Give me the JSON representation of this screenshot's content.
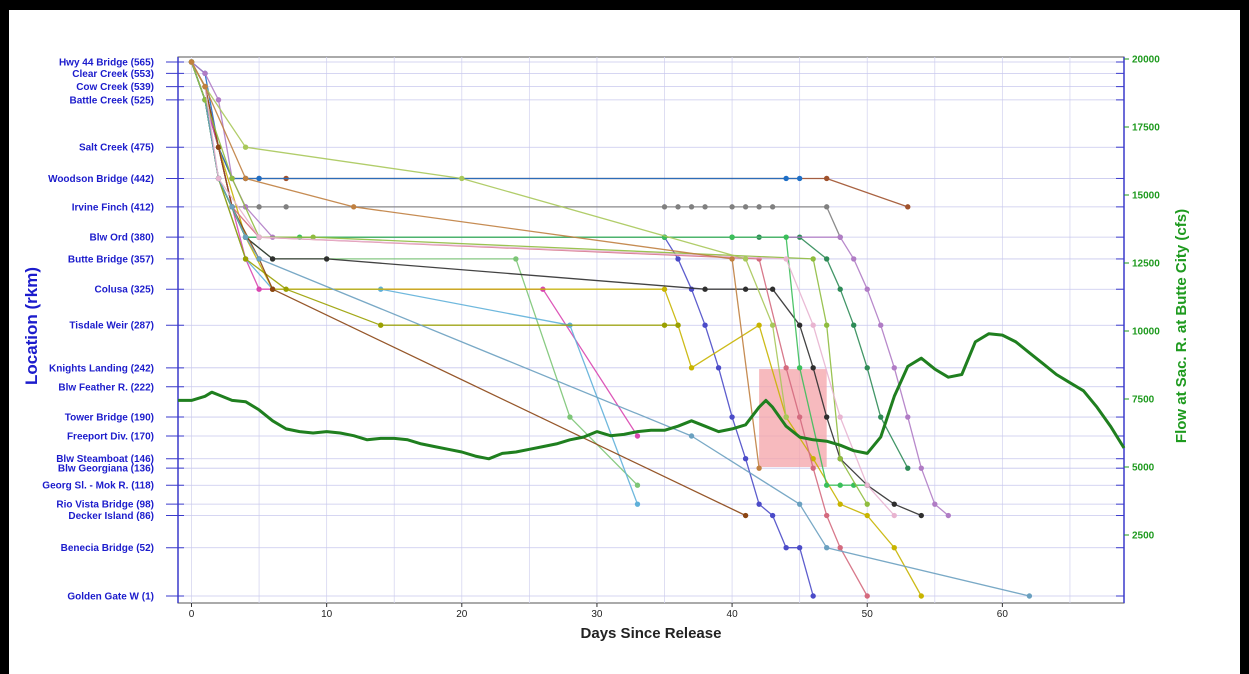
{
  "chart_data": {
    "type": "line",
    "xlabel": "Days Since Release",
    "ylabel": "Location (rkm)",
    "y2label": "Flow at Sac. R. at Butte City (cfs)",
    "xlim": [
      -1,
      69
    ],
    "x_ticks": [
      0,
      10,
      20,
      30,
      40,
      50,
      60
    ],
    "locations": [
      {
        "label": "Hwy 44 Bridge (565)",
        "rkm": 565
      },
      {
        "label": "Clear Creek (553)",
        "rkm": 553
      },
      {
        "label": "Cow Creek (539)",
        "rkm": 539
      },
      {
        "label": "Battle Creek (525)",
        "rkm": 525
      },
      {
        "label": "Salt Creek (475)",
        "rkm": 475
      },
      {
        "label": "Woodson Bridge (442)",
        "rkm": 442
      },
      {
        "label": "Irvine Finch (412)",
        "rkm": 412
      },
      {
        "label": "Blw Ord (380)",
        "rkm": 380
      },
      {
        "label": "Butte Bridge (357)",
        "rkm": 357
      },
      {
        "label": "Colusa (325)",
        "rkm": 325
      },
      {
        "label": "Tisdale Weir (287)",
        "rkm": 287
      },
      {
        "label": "Knights Landing (242)",
        "rkm": 242
      },
      {
        "label": "Blw Feather R. (222)",
        "rkm": 222
      },
      {
        "label": "Tower Bridge (190)",
        "rkm": 190
      },
      {
        "label": "Freeport Div. (170)",
        "rkm": 170
      },
      {
        "label": "Blw Steamboat (146)",
        "rkm": 146
      },
      {
        "label": "Blw Georgiana (136)",
        "rkm": 136
      },
      {
        "label": "Georg Sl. - Mok R. (118)",
        "rkm": 118
      },
      {
        "label": "Rio Vista Bridge (98)",
        "rkm": 98
      },
      {
        "label": "Decker Island (86)",
        "rkm": 86
      },
      {
        "label": "Benecia Bridge (52)",
        "rkm": 52
      },
      {
        "label": "Golden Gate W (1)",
        "rkm": 1
      }
    ],
    "flow_axis": {
      "ticks": [
        2500,
        5000,
        7500,
        10000,
        12500,
        15000,
        17500,
        20000
      ],
      "ylim": [
        0,
        20000
      ],
      "color": "#1e9a1e"
    },
    "flow_series": {
      "x": [
        -1,
        0,
        1,
        1.5,
        2,
        3,
        4,
        5,
        6,
        7,
        8,
        9,
        10,
        11,
        12,
        13,
        14,
        15,
        16,
        17,
        18,
        19,
        20,
        21,
        22,
        23,
        24,
        25,
        26,
        27,
        28,
        29,
        30,
        31,
        32,
        33,
        34,
        35,
        36,
        37,
        38,
        39,
        40,
        41,
        42,
        42.5,
        43,
        44,
        45,
        46,
        47,
        48,
        49,
        50,
        51,
        52,
        53,
        54,
        55,
        56,
        57,
        58,
        59,
        60,
        61,
        62,
        63,
        64,
        65,
        66,
        67,
        68,
        69
      ],
      "y": [
        7450,
        7450,
        7600,
        7750,
        7650,
        7450,
        7400,
        7100,
        6700,
        6400,
        6300,
        6250,
        6300,
        6250,
        6150,
        6000,
        6050,
        6050,
        6000,
        5850,
        5750,
        5650,
        5550,
        5400,
        5300,
        5500,
        5550,
        5650,
        5750,
        5850,
        6000,
        6100,
        6300,
        6150,
        6200,
        6300,
        6350,
        6350,
        6500,
        6700,
        6500,
        6300,
        6400,
        6550,
        7200,
        7450,
        7200,
        6500,
        6100,
        6000,
        5950,
        5800,
        5600,
        5500,
        6100,
        7600,
        8700,
        9000,
        8600,
        8300,
        8400,
        9600,
        9900,
        9850,
        9600,
        9200,
        8800,
        8400,
        8100,
        7800,
        7200,
        6500,
        5700
      ]
    },
    "highlight_region": {
      "x": [
        42,
        47
      ],
      "flow": [
        5000,
        8600
      ],
      "color": "#f4a3a8"
    },
    "series": [
      {
        "color": "#a0522d",
        "x": [
          0,
          1,
          2,
          3,
          4,
          5,
          7,
          47,
          53
        ],
        "y": [
          565,
          539,
          475,
          442,
          442,
          442,
          442,
          442,
          412
        ]
      },
      {
        "color": "#1f6fc7",
        "x": [
          0,
          1,
          2,
          3,
          4,
          5,
          44,
          45
        ],
        "y": [
          565,
          553,
          475,
          442,
          442,
          442,
          442,
          442
        ]
      },
      {
        "color": "#808080",
        "x": [
          0,
          1,
          2,
          3,
          4,
          5,
          7,
          35,
          36,
          37,
          38,
          40,
          41,
          42,
          43,
          47,
          48
        ],
        "y": [
          565,
          539,
          475,
          412,
          412,
          412,
          412,
          412,
          412,
          412,
          412,
          412,
          412,
          412,
          412,
          412,
          380
        ]
      },
      {
        "color": "#2e8b57",
        "x": [
          0,
          1,
          2,
          3,
          4,
          5,
          35,
          40,
          42,
          45,
          47,
          48,
          49,
          50,
          51,
          53
        ],
        "y": [
          565,
          525,
          475,
          412,
          380,
          380,
          380,
          380,
          380,
          380,
          357,
          325,
          287,
          242,
          190,
          136
        ]
      },
      {
        "color": "#4b4bc8",
        "x": [
          0,
          1,
          2,
          3,
          4,
          5,
          35,
          36,
          37,
          38,
          39,
          40,
          41,
          42,
          43,
          44,
          45,
          46
        ],
        "y": [
          565,
          525,
          475,
          412,
          380,
          380,
          380,
          357,
          325,
          287,
          242,
          190,
          146,
          98,
          86,
          52,
          52,
          1
        ]
      },
      {
        "color": "#d946b0",
        "x": [
          0,
          1,
          2,
          3,
          4,
          5,
          6,
          26,
          33
        ],
        "y": [
          565,
          525,
          475,
          412,
          357,
          325,
          325,
          325,
          170
        ]
      },
      {
        "color": "#7cc576",
        "x": [
          0,
          1,
          2,
          4,
          6,
          10,
          24,
          28,
          33
        ],
        "y": [
          565,
          525,
          442,
          380,
          357,
          357,
          357,
          190,
          118
        ]
      },
      {
        "color": "#5fb0d9",
        "x": [
          0,
          1,
          2,
          4,
          6,
          14,
          28,
          33
        ],
        "y": [
          565,
          525,
          442,
          357,
          325,
          325,
          287,
          98
        ]
      },
      {
        "color": "#c8b400",
        "x": [
          0,
          1,
          2,
          4,
          6,
          35,
          36,
          37,
          42,
          44,
          46,
          48,
          50,
          52,
          54
        ],
        "y": [
          565,
          539,
          475,
          380,
          325,
          325,
          287,
          242,
          287,
          190,
          146,
          98,
          86,
          52,
          1
        ]
      },
      {
        "color": "#9aa000",
        "x": [
          0,
          1,
          2,
          4,
          7,
          14,
          35,
          36
        ],
        "y": [
          565,
          525,
          442,
          357,
          325,
          287,
          287,
          287
        ]
      },
      {
        "color": "#2f2f2f",
        "x": [
          0,
          1,
          2,
          4,
          6,
          10,
          38,
          41,
          43,
          45,
          46,
          47,
          48,
          50,
          52,
          54
        ],
        "y": [
          565,
          525,
          442,
          380,
          357,
          357,
          325,
          325,
          325,
          287,
          242,
          190,
          146,
          118,
          98,
          86
        ]
      },
      {
        "color": "#b07cc5",
        "x": [
          0,
          1,
          2,
          3,
          4,
          6,
          48,
          49,
          50,
          51,
          52,
          53,
          54,
          55,
          56
        ],
        "y": [
          565,
          553,
          525,
          442,
          412,
          380,
          380,
          357,
          325,
          287,
          242,
          190,
          136,
          98,
          86
        ]
      },
      {
        "color": "#d46a7e",
        "x": [
          0,
          1,
          2,
          3,
          5,
          42,
          44,
          45,
          46,
          47,
          48,
          50
        ],
        "y": [
          565,
          539,
          475,
          412,
          380,
          357,
          242,
          190,
          136,
          86,
          52,
          1
        ]
      },
      {
        "color": "#8b4513",
        "x": [
          0,
          1,
          2,
          3,
          5,
          6,
          41
        ],
        "y": [
          565,
          539,
          475,
          412,
          357,
          325,
          86
        ]
      },
      {
        "color": "#3bbf5a",
        "x": [
          0,
          1,
          2,
          4,
          8,
          35,
          40,
          44,
          45,
          47,
          48,
          49,
          50
        ],
        "y": [
          565,
          525,
          442,
          380,
          380,
          380,
          380,
          380,
          242,
          118,
          118,
          118,
          118
        ]
      },
      {
        "color": "#6aa0c0",
        "x": [
          0,
          1,
          2,
          3,
          4,
          5,
          37,
          45,
          47,
          62
        ],
        "y": [
          565,
          525,
          442,
          412,
          380,
          357,
          170,
          98,
          52,
          1
        ]
      },
      {
        "color": "#8fbc3f",
        "x": [
          0,
          1,
          3,
          5,
          9,
          46,
          47,
          48,
          50
        ],
        "y": [
          565,
          525,
          442,
          380,
          380,
          357,
          287,
          146,
          98
        ]
      },
      {
        "color": "#e8b4d0",
        "x": [
          0,
          1,
          2,
          5,
          44,
          46,
          48,
          50,
          52
        ],
        "y": [
          565,
          539,
          442,
          380,
          357,
          287,
          190,
          118,
          86
        ]
      },
      {
        "color": "#a8c85a",
        "x": [
          0,
          1,
          4,
          20,
          41,
          43,
          44
        ],
        "y": [
          565,
          539,
          475,
          442,
          357,
          287,
          190
        ]
      },
      {
        "color": "#c08040",
        "x": [
          0,
          1,
          4,
          12,
          40,
          42
        ],
        "y": [
          565,
          539,
          442,
          412,
          357,
          136
        ]
      }
    ]
  }
}
